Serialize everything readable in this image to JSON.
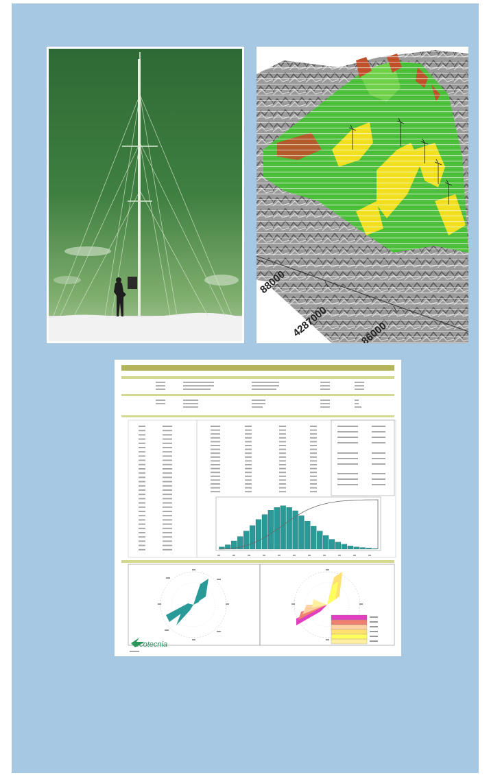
{
  "map": {
    "labels": [
      "88000",
      "4287000",
      "86000"
    ]
  },
  "report": {
    "title_left": "",
    "title_right": "",
    "legend_colors": [
      "#e040c0",
      "#f08070",
      "#ffd0a0",
      "#ffe070",
      "#ffff60",
      "#fff0a0"
    ],
    "logo": "ecotecnia"
  },
  "chart_data": [
    {
      "type": "bar",
      "title": "",
      "values": [
        0.4,
        0.8,
        1.5,
        2.3,
        3.3,
        4.3,
        5.4,
        6.3,
        7.1,
        7.6,
        7.9,
        7.6,
        7.0,
        6.1,
        5.1,
        4.2,
        3.3,
        2.5,
        1.8,
        1.3,
        0.9,
        0.6,
        0.4,
        0.3,
        0.2,
        0.1
      ],
      "cumulative_line": true
    },
    {
      "type": "pie",
      "title": "",
      "note": "wind rose"
    }
  ],
  "colors": {
    "background_panel": "#a6c8e2",
    "report_header": "#b4b45a",
    "histogram_bars": "#2a9a98",
    "map_green": "#4cbf3a",
    "map_yellow": "#f0e020",
    "map_red": "#c0502a"
  }
}
